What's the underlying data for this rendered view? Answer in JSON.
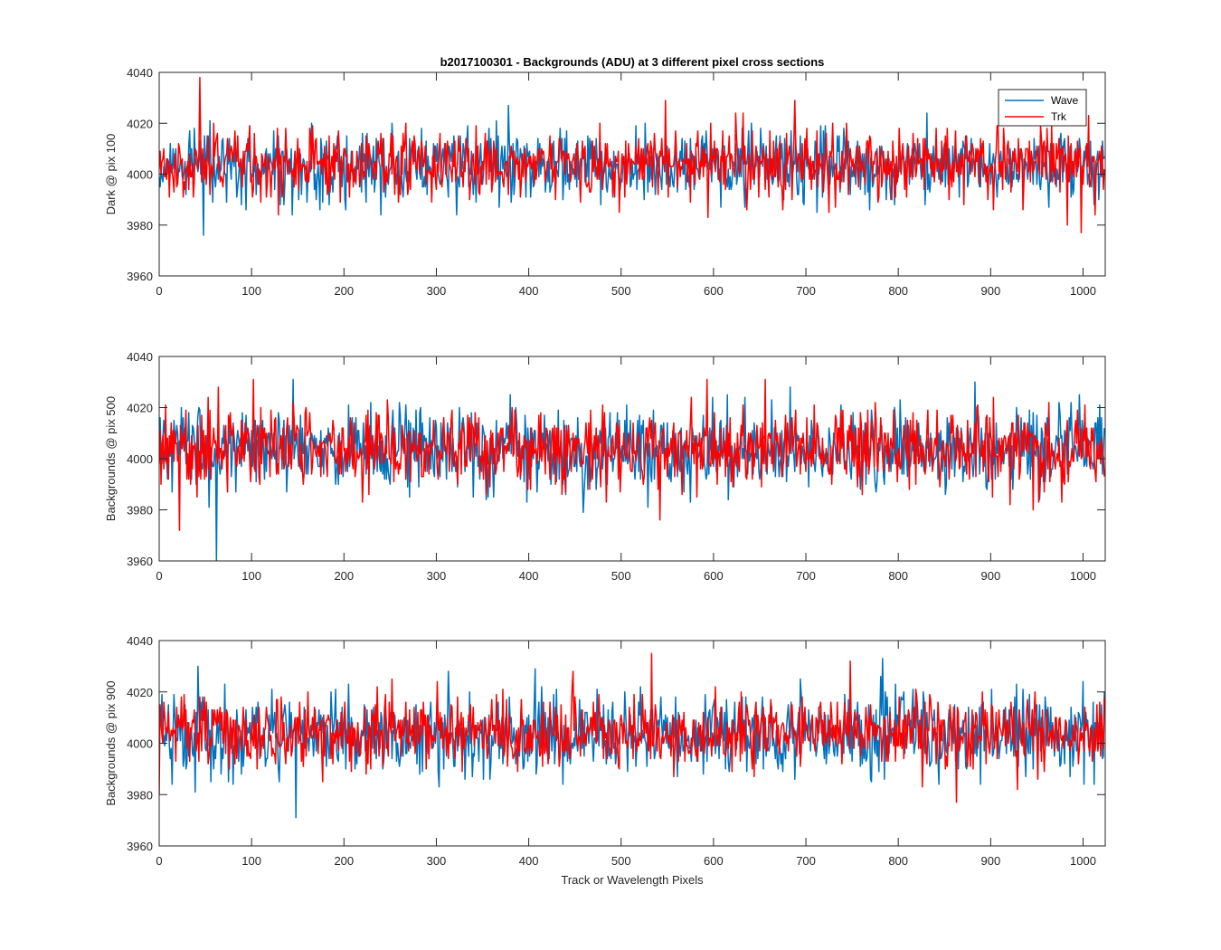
{
  "figure": {
    "title": "b2017100301 - Backgrounds (ADU) at 3 different pixel cross sections",
    "xlabel": "Track or Wavelength Pixels"
  },
  "legend": {
    "placement": "top-right of first subplot",
    "entries": [
      {
        "label": "Wave",
        "color": "#0072BD"
      },
      {
        "label": "Trk",
        "color": "#FF0000"
      }
    ]
  },
  "chart_data": [
    {
      "type": "line",
      "title": "b2017100301 - Backgrounds (ADU) at 3 different pixel cross sections",
      "xlabel": "",
      "ylabel": "Dark @ pix 100",
      "xlim": [
        0,
        1024
      ],
      "ylim": [
        3960,
        4040
      ],
      "xticks": [
        0,
        100,
        200,
        300,
        400,
        500,
        600,
        700,
        800,
        900,
        1000
      ],
      "yticks": [
        3960,
        3980,
        4000,
        4020,
        4040
      ],
      "grid": false,
      "series_stats": [
        {
          "name": "Wave",
          "color": "#0072BD",
          "n_points": 1024,
          "mean": 4003,
          "approx_std": 7,
          "min": 3976,
          "max": 4027
        },
        {
          "name": "Trk",
          "color": "#FF0000",
          "n_points": 1024,
          "mean": 4004,
          "approx_std": 7,
          "min": 3977,
          "max": 4038
        }
      ],
      "notable_points": [
        {
          "series": "Trk",
          "x": 44,
          "y": 4038
        },
        {
          "series": "Wave",
          "x": 48,
          "y": 3976
        },
        {
          "series": "Wave",
          "x": 378,
          "y": 4027
        },
        {
          "series": "Trk",
          "x": 548,
          "y": 4029
        },
        {
          "series": "Trk",
          "x": 688,
          "y": 4029
        },
        {
          "series": "Trk",
          "x": 998,
          "y": 3977
        }
      ]
    },
    {
      "type": "line",
      "title": "",
      "xlabel": "",
      "ylabel": "Backgrounds @ pix 500",
      "xlim": [
        0,
        1024
      ],
      "ylim": [
        3960,
        4040
      ],
      "xticks": [
        0,
        100,
        200,
        300,
        400,
        500,
        600,
        700,
        800,
        900,
        1000
      ],
      "yticks": [
        3960,
        3980,
        4000,
        4020,
        4040
      ],
      "grid": false,
      "series_stats": [
        {
          "name": "Wave",
          "color": "#0072BD",
          "n_points": 1024,
          "mean": 4003,
          "approx_std": 8,
          "min": 3960,
          "max": 4031
        },
        {
          "name": "Trk",
          "color": "#FF0000",
          "n_points": 1024,
          "mean": 4004,
          "approx_std": 8,
          "min": 3972,
          "max": 4031
        }
      ],
      "notable_points": [
        {
          "series": "Trk",
          "x": 22,
          "y": 3972
        },
        {
          "series": "Wave",
          "x": 62,
          "y": 3960
        },
        {
          "series": "Trk",
          "x": 102,
          "y": 4031
        },
        {
          "series": "Wave",
          "x": 145,
          "y": 4031
        },
        {
          "series": "Trk",
          "x": 593,
          "y": 4031
        },
        {
          "series": "Trk",
          "x": 656,
          "y": 4031
        },
        {
          "series": "Wave",
          "x": 883,
          "y": 4030
        }
      ]
    },
    {
      "type": "line",
      "title": "",
      "xlabel": "Track or Wavelength Pixels",
      "ylabel": "Backgrounds @ pix 900",
      "xlim": [
        0,
        1024
      ],
      "ylim": [
        3960,
        4040
      ],
      "xticks": [
        0,
        100,
        200,
        300,
        400,
        500,
        600,
        700,
        800,
        900,
        1000
      ],
      "yticks": [
        3960,
        3980,
        4000,
        4020,
        4040
      ],
      "grid": false,
      "series_stats": [
        {
          "name": "Wave",
          "color": "#0072BD",
          "n_points": 1024,
          "mean": 4003,
          "approx_std": 8,
          "min": 3971,
          "max": 4033
        },
        {
          "name": "Trk",
          "color": "#FF0000",
          "n_points": 1024,
          "mean": 4004,
          "approx_std": 7,
          "min": 3977,
          "max": 4035
        }
      ],
      "notable_points": [
        {
          "series": "Wave",
          "x": 148,
          "y": 3971
        },
        {
          "series": "Trk",
          "x": 448,
          "y": 4028
        },
        {
          "series": "Trk",
          "x": 533,
          "y": 4035
        },
        {
          "series": "Trk",
          "x": 748,
          "y": 4032
        },
        {
          "series": "Wave",
          "x": 783,
          "y": 4033
        },
        {
          "series": "Trk",
          "x": 863,
          "y": 3977
        }
      ]
    }
  ]
}
